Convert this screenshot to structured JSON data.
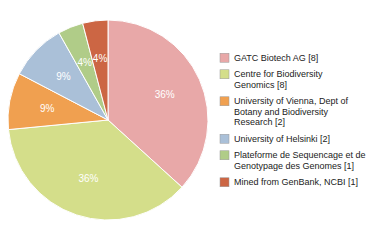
{
  "chart_data": {
    "type": "pie",
    "categories": [
      "GATC Biotech AG [8]",
      "Centre for Biodiversity\nGenomics [8]",
      "University of Vienna, Dept of\nBotany and Biodiversity\nResearch [2]",
      "University of Helsinki [2]",
      "Plateforme de Sequencage et de\nGenotypage des Genomes [1]",
      "Mined from GenBank, NCBI [1]"
    ],
    "values": [
      36,
      36,
      9,
      9,
      4,
      4
    ],
    "value_labels": [
      "36%",
      "36%",
      "9%",
      "9%",
      "4%",
      "4%"
    ],
    "colors": [
      "#e8a8a8",
      "#d4de8a",
      "#f0a050",
      "#aac0d8",
      "#b0cc88",
      "#cc6644"
    ],
    "data_labels": true,
    "legend": "right"
  }
}
